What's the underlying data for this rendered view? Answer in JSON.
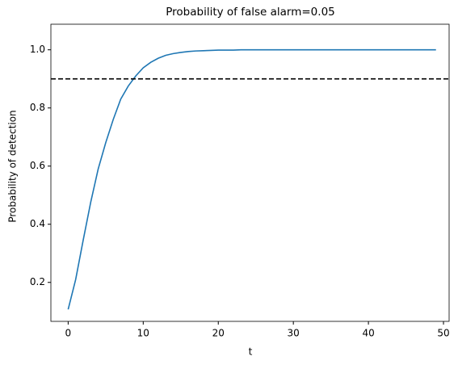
{
  "chart_data": {
    "type": "line",
    "title": "Probability of false alarm=0.05",
    "x_label": "t",
    "y_label": "Probability of detection",
    "x": [
      0,
      1,
      2,
      3,
      4,
      5,
      6,
      7,
      8,
      9,
      10,
      11,
      12,
      13,
      14,
      15,
      16,
      17,
      18,
      19,
      20,
      21,
      22,
      23,
      24,
      25,
      26,
      27,
      28,
      29,
      30,
      31,
      32,
      33,
      34,
      35,
      36,
      37,
      38,
      39,
      40,
      41,
      42,
      43,
      44,
      45,
      46,
      47,
      48,
      49
    ],
    "series": [
      {
        "color": "#1f77b4",
        "values": [
          0.107,
          0.21,
          0.345,
          0.475,
          0.59,
          0.68,
          0.76,
          0.83,
          0.875,
          0.91,
          0.938,
          0.957,
          0.971,
          0.981,
          0.987,
          0.991,
          0.994,
          0.996,
          0.997,
          0.998,
          0.999,
          0.999,
          0.999,
          1.0,
          1.0,
          1.0,
          1.0,
          1.0,
          1.0,
          1.0,
          1.0,
          1.0,
          1.0,
          1.0,
          1.0,
          1.0,
          1.0,
          1.0,
          1.0,
          1.0,
          1.0,
          1.0,
          1.0,
          1.0,
          1.0,
          1.0,
          1.0,
          1.0,
          1.0,
          1.0
        ]
      }
    ],
    "hline": {
      "value": 0.9,
      "color": "#000000",
      "style": "dashed"
    },
    "xlim": [
      -2.3,
      50.75
    ],
    "ylim": [
      0.066,
      1.088
    ],
    "xticks": [
      0,
      10,
      20,
      30,
      40,
      50
    ],
    "yticks": [
      {
        "value": 0.2,
        "label": "0.2"
      },
      {
        "value": 0.4,
        "label": "0.4"
      },
      {
        "value": 0.6,
        "label": "0.6"
      },
      {
        "value": 0.8,
        "label": "0.8"
      },
      {
        "value": 1.0,
        "label": "1.0"
      }
    ],
    "grid": false
  }
}
